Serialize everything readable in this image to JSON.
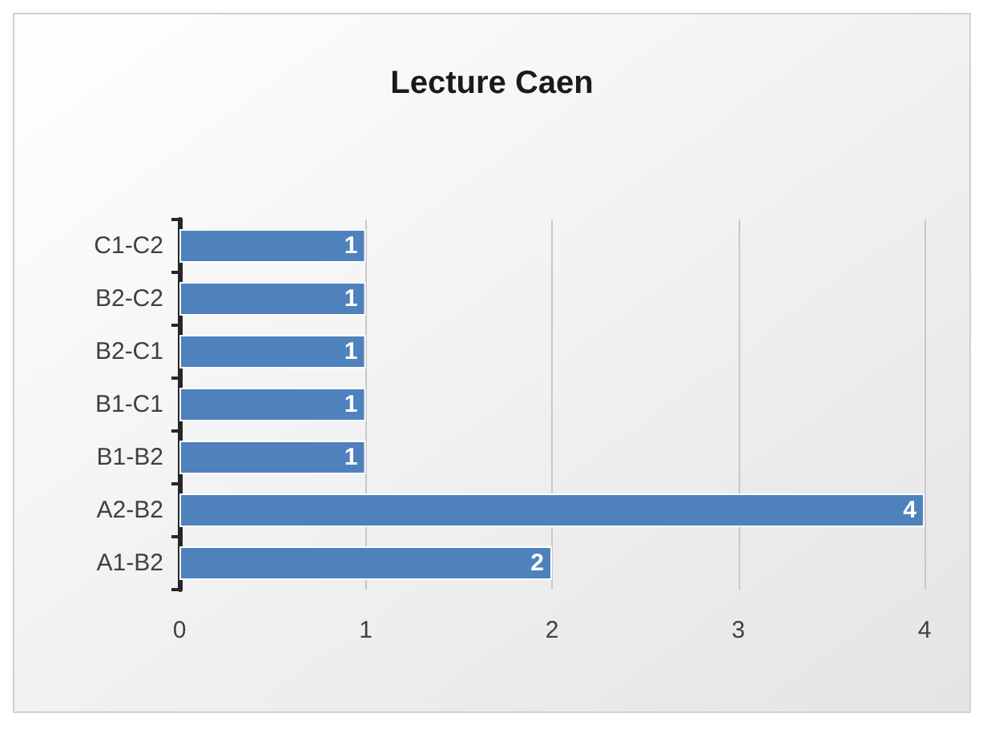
{
  "chart_data": {
    "type": "bar",
    "orientation": "horizontal",
    "title": "Lecture Caen",
    "categories": [
      "C1-C2",
      "B2-C2",
      "B2-C1",
      "B1-C1",
      "B1-B2",
      "A2-B2",
      "A1-B2"
    ],
    "values": [
      1,
      1,
      1,
      1,
      1,
      4,
      2
    ],
    "color": "#4f81bd",
    "xlim": [
      0,
      4
    ],
    "xticks": [
      0,
      1,
      2,
      3,
      4
    ],
    "grid": "x",
    "data_labels": true
  }
}
